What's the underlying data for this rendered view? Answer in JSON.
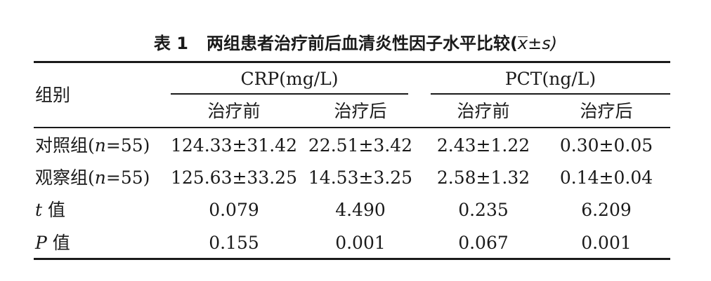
{
  "caption": {
    "number": "表 1",
    "title": "两组患者治疗前后血清炎性因子水平比较(",
    "xbar": "x",
    "tail": "±s)"
  },
  "header": {
    "group_label": "组别",
    "crp": "CRP(mg/L)",
    "pct": "PCT(ng/L)",
    "sub": [
      "治疗前",
      "治疗后",
      "治疗前",
      "治疗后"
    ]
  },
  "rows": [
    {
      "label": "对照组(",
      "var": "n",
      "label_tail": "=55)",
      "cells": [
        "124.33±31.42",
        "22.51±3.42",
        "2.43±1.22",
        "0.30±0.05"
      ]
    },
    {
      "label": "观察组(",
      "var": "n",
      "label_tail": "=55)",
      "cells": [
        "125.63±33.25",
        "14.53±3.25",
        "2.58±1.32",
        "0.14±0.04"
      ]
    },
    {
      "label": "",
      "var": "t",
      "label_tail": " 值",
      "cells": [
        "0.079",
        "4.490",
        "0.235",
        "6.209"
      ]
    },
    {
      "label": "",
      "var": "P",
      "label_tail": " 值",
      "cells": [
        "0.155",
        "0.001",
        "0.067",
        "0.001"
      ]
    }
  ]
}
